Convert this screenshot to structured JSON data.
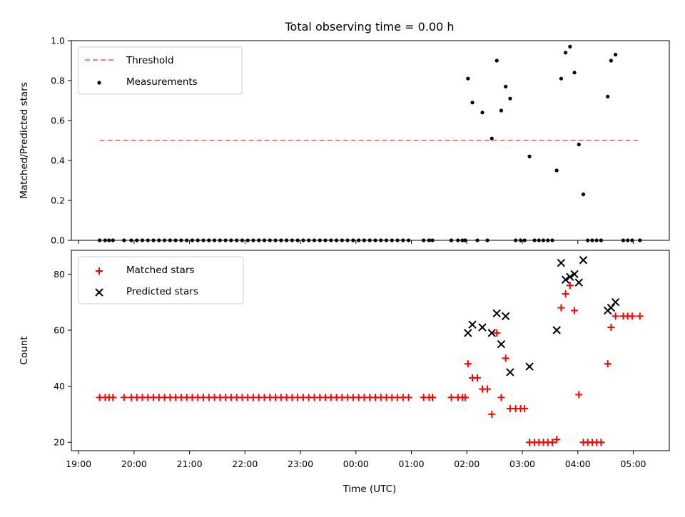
{
  "chart_data": {
    "type": "scatter",
    "title": "Total observing time = 0.00 h",
    "xlabel": "Time (UTC)",
    "x_unit": "hours since 00:00 UTC (negative = previous evening)",
    "xlim": [
      -5.13,
      5.65
    ],
    "x_ticks": [
      {
        "value": -5,
        "label": "19:00"
      },
      {
        "value": -4,
        "label": "20:00"
      },
      {
        "value": -3,
        "label": "21:00"
      },
      {
        "value": -2,
        "label": "22:00"
      },
      {
        "value": -1,
        "label": "23:00"
      },
      {
        "value": 0,
        "label": "00:00"
      },
      {
        "value": 1,
        "label": "01:00"
      },
      {
        "value": 2,
        "label": "02:00"
      },
      {
        "value": 3,
        "label": "03:00"
      },
      {
        "value": 4,
        "label": "04:00"
      },
      {
        "value": 5,
        "label": "05:00"
      }
    ],
    "panels": [
      {
        "id": "ratio",
        "ylabel": "Matched/Predicted stars",
        "ylim": [
          0,
          1.0
        ],
        "yticks": [
          "0.0",
          "0.2",
          "0.4",
          "0.6",
          "0.8",
          "1.0"
        ],
        "ytick_values": [
          0,
          0.2,
          0.4,
          0.6,
          0.8,
          1.0
        ],
        "legend_position": "upper-left",
        "threshold": {
          "name": "Threshold",
          "y": 0.5,
          "x_range": [
            -4.62,
            5.08
          ],
          "color": "#ff7f7f"
        },
        "series": [
          {
            "name": "Measurements",
            "marker": "dot",
            "color": "#000000",
            "points": [
              [
                -4.62,
                0
              ],
              [
                -4.52,
                0
              ],
              [
                -4.45,
                0
              ],
              [
                -4.38,
                0
              ],
              [
                -4.18,
                0
              ],
              [
                -4.05,
                0
              ],
              [
                -3.95,
                0
              ],
              [
                -3.85,
                0
              ],
              [
                -3.75,
                0
              ],
              [
                -3.65,
                0
              ],
              [
                -3.55,
                0
              ],
              [
                -3.45,
                0
              ],
              [
                -3.35,
                0
              ],
              [
                -3.25,
                0
              ],
              [
                -3.15,
                0
              ],
              [
                -3.05,
                0
              ],
              [
                -2.95,
                0
              ],
              [
                -2.85,
                0
              ],
              [
                -2.75,
                0
              ],
              [
                -2.65,
                0
              ],
              [
                -2.55,
                0
              ],
              [
                -2.45,
                0
              ],
              [
                -2.35,
                0
              ],
              [
                -2.25,
                0
              ],
              [
                -2.15,
                0
              ],
              [
                -2.05,
                0
              ],
              [
                -1.95,
                0
              ],
              [
                -1.85,
                0
              ],
              [
                -1.75,
                0
              ],
              [
                -1.65,
                0
              ],
              [
                -1.55,
                0
              ],
              [
                -1.45,
                0
              ],
              [
                -1.35,
                0
              ],
              [
                -1.25,
                0
              ],
              [
                -1.15,
                0
              ],
              [
                -1.05,
                0
              ],
              [
                -0.95,
                0
              ],
              [
                -0.85,
                0
              ],
              [
                -0.75,
                0
              ],
              [
                -0.65,
                0
              ],
              [
                -0.55,
                0
              ],
              [
                -0.45,
                0
              ],
              [
                -0.35,
                0
              ],
              [
                -0.25,
                0
              ],
              [
                -0.15,
                0
              ],
              [
                -0.05,
                0
              ],
              [
                0.05,
                0
              ],
              [
                0.15,
                0
              ],
              [
                0.25,
                0
              ],
              [
                0.35,
                0
              ],
              [
                0.45,
                0
              ],
              [
                0.55,
                0
              ],
              [
                0.65,
                0
              ],
              [
                0.75,
                0
              ],
              [
                0.85,
                0
              ],
              [
                0.95,
                0
              ],
              [
                1.22,
                0
              ],
              [
                1.32,
                0
              ],
              [
                1.38,
                0
              ],
              [
                1.72,
                0
              ],
              [
                1.84,
                0
              ],
              [
                1.92,
                0
              ],
              [
                1.97,
                0
              ],
              [
                2.02,
                0.81
              ],
              [
                2.1,
                0.69
              ],
              [
                2.19,
                0
              ],
              [
                2.28,
                0.64
              ],
              [
                2.37,
                0
              ],
              [
                2.45,
                0.51
              ],
              [
                2.54,
                0.9
              ],
              [
                2.62,
                0.65
              ],
              [
                2.7,
                0.77
              ],
              [
                2.78,
                0.71
              ],
              [
                2.88,
                0
              ],
              [
                2.97,
                0
              ],
              [
                3.04,
                0
              ],
              [
                3.13,
                0.42
              ],
              [
                3.22,
                0
              ],
              [
                3.3,
                0
              ],
              [
                3.38,
                0
              ],
              [
                3.46,
                0
              ],
              [
                3.54,
                0
              ],
              [
                3.62,
                0.35
              ],
              [
                3.7,
                0.81
              ],
              [
                3.78,
                0.94
              ],
              [
                3.86,
                0.97
              ],
              [
                3.94,
                0.84
              ],
              [
                4.02,
                0.48
              ],
              [
                4.1,
                0.23
              ],
              [
                4.18,
                0
              ],
              [
                4.26,
                0
              ],
              [
                4.34,
                0
              ],
              [
                4.42,
                0
              ],
              [
                4.54,
                0.72
              ],
              [
                4.6,
                0.9
              ],
              [
                4.68,
                0.93
              ],
              [
                4.82,
                0
              ],
              [
                4.9,
                0
              ],
              [
                4.98,
                0
              ],
              [
                5.12,
                0
              ]
            ]
          }
        ]
      },
      {
        "id": "count",
        "ylabel": "Count",
        "ylim": [
          17,
          88.5
        ],
        "yticks": [
          "20",
          "40",
          "60",
          "80"
        ],
        "ytick_values": [
          20,
          40,
          60,
          80
        ],
        "legend_position": "upper-left",
        "series": [
          {
            "name": "Matched stars",
            "marker": "plus",
            "color": "#ff0000",
            "points": [
              [
                -4.62,
                36
              ],
              [
                -4.52,
                36
              ],
              [
                -4.45,
                36
              ],
              [
                -4.38,
                36
              ],
              [
                -4.18,
                36
              ],
              [
                -4.05,
                36
              ],
              [
                -3.95,
                36
              ],
              [
                -3.85,
                36
              ],
              [
                -3.75,
                36
              ],
              [
                -3.65,
                36
              ],
              [
                -3.55,
                36
              ],
              [
                -3.45,
                36
              ],
              [
                -3.35,
                36
              ],
              [
                -3.25,
                36
              ],
              [
                -3.15,
                36
              ],
              [
                -3.05,
                36
              ],
              [
                -2.95,
                36
              ],
              [
                -2.85,
                36
              ],
              [
                -2.75,
                36
              ],
              [
                -2.65,
                36
              ],
              [
                -2.55,
                36
              ],
              [
                -2.45,
                36
              ],
              [
                -2.35,
                36
              ],
              [
                -2.25,
                36
              ],
              [
                -2.15,
                36
              ],
              [
                -2.05,
                36
              ],
              [
                -1.95,
                36
              ],
              [
                -1.85,
                36
              ],
              [
                -1.75,
                36
              ],
              [
                -1.65,
                36
              ],
              [
                -1.55,
                36
              ],
              [
                -1.45,
                36
              ],
              [
                -1.35,
                36
              ],
              [
                -1.25,
                36
              ],
              [
                -1.15,
                36
              ],
              [
                -1.05,
                36
              ],
              [
                -0.95,
                36
              ],
              [
                -0.85,
                36
              ],
              [
                -0.75,
                36
              ],
              [
                -0.65,
                36
              ],
              [
                -0.55,
                36
              ],
              [
                -0.45,
                36
              ],
              [
                -0.35,
                36
              ],
              [
                -0.25,
                36
              ],
              [
                -0.15,
                36
              ],
              [
                -0.05,
                36
              ],
              [
                0.05,
                36
              ],
              [
                0.15,
                36
              ],
              [
                0.25,
                36
              ],
              [
                0.35,
                36
              ],
              [
                0.45,
                36
              ],
              [
                0.55,
                36
              ],
              [
                0.65,
                36
              ],
              [
                0.75,
                36
              ],
              [
                0.85,
                36
              ],
              [
                0.95,
                36
              ],
              [
                1.22,
                36
              ],
              [
                1.32,
                36
              ],
              [
                1.38,
                36
              ],
              [
                1.72,
                36
              ],
              [
                1.84,
                36
              ],
              [
                1.92,
                36
              ],
              [
                1.97,
                36
              ],
              [
                2.02,
                48
              ],
              [
                2.1,
                43
              ],
              [
                2.19,
                43
              ],
              [
                2.28,
                39
              ],
              [
                2.37,
                39
              ],
              [
                2.45,
                30
              ],
              [
                2.54,
                59
              ],
              [
                2.62,
                36
              ],
              [
                2.7,
                50
              ],
              [
                2.78,
                32
              ],
              [
                2.88,
                32
              ],
              [
                2.97,
                32
              ],
              [
                3.04,
                32
              ],
              [
                3.13,
                20
              ],
              [
                3.22,
                20
              ],
              [
                3.3,
                20
              ],
              [
                3.38,
                20
              ],
              [
                3.46,
                20
              ],
              [
                3.54,
                20
              ],
              [
                3.62,
                21
              ],
              [
                3.7,
                68
              ],
              [
                3.78,
                73
              ],
              [
                3.86,
                76
              ],
              [
                3.94,
                67
              ],
              [
                4.02,
                37
              ],
              [
                4.1,
                20
              ],
              [
                4.18,
                20
              ],
              [
                4.26,
                20
              ],
              [
                4.34,
                20
              ],
              [
                4.42,
                20
              ],
              [
                4.54,
                48
              ],
              [
                4.6,
                61
              ],
              [
                4.68,
                65
              ],
              [
                4.82,
                65
              ],
              [
                4.9,
                65
              ],
              [
                4.98,
                65
              ],
              [
                5.12,
                65
              ]
            ]
          },
          {
            "name": "Predicted stars",
            "marker": "x",
            "color": "#000000",
            "points": [
              [
                2.02,
                59
              ],
              [
                2.1,
                62
              ],
              [
                2.28,
                61
              ],
              [
                2.45,
                59
              ],
              [
                2.54,
                66
              ],
              [
                2.62,
                55
              ],
              [
                2.7,
                65
              ],
              [
                2.78,
                45
              ],
              [
                3.13,
                47
              ],
              [
                3.62,
                60
              ],
              [
                3.7,
                84
              ],
              [
                3.78,
                78
              ],
              [
                3.86,
                79
              ],
              [
                3.94,
                80
              ],
              [
                4.02,
                77
              ],
              [
                4.1,
                85
              ],
              [
                4.54,
                67
              ],
              [
                4.6,
                68
              ],
              [
                4.68,
                70
              ]
            ]
          }
        ]
      }
    ]
  }
}
